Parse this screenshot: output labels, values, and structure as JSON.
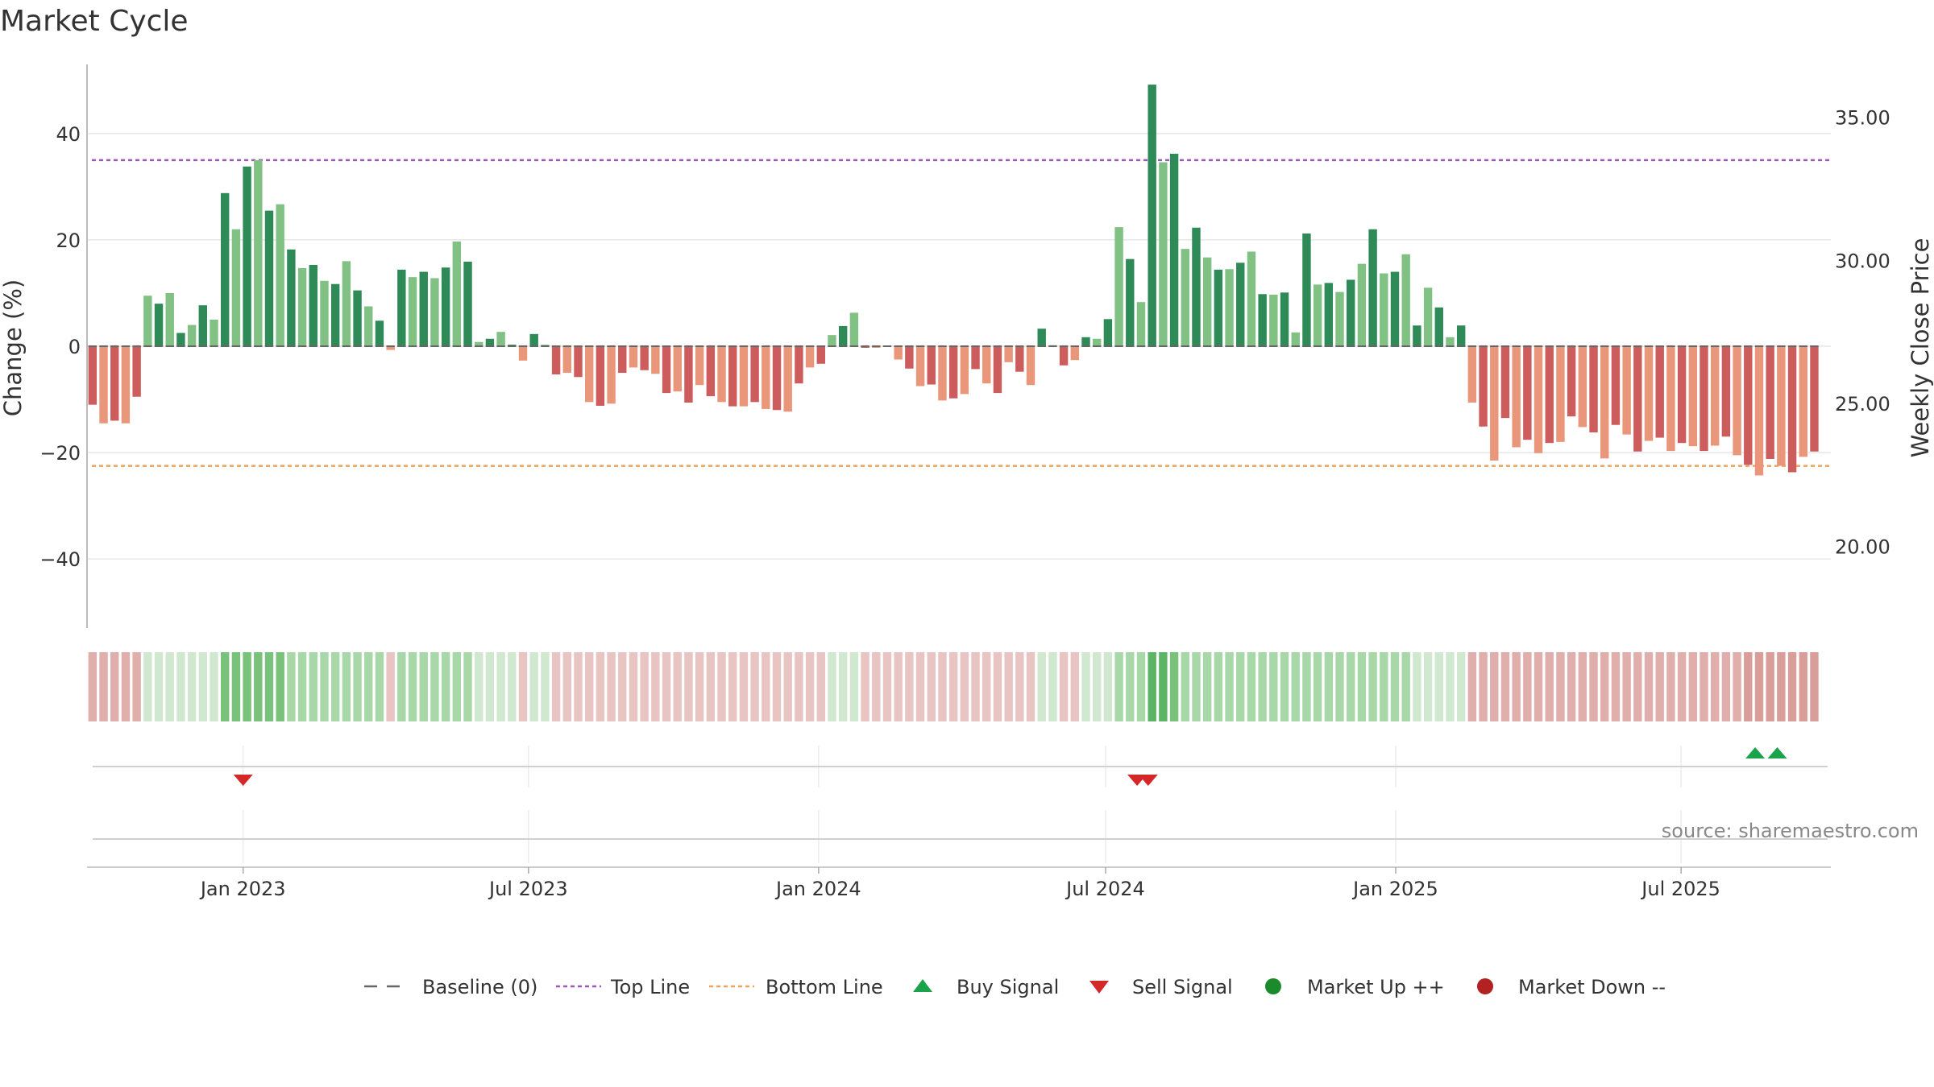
{
  "title": "Market Cycle",
  "source": "source: sharemaestro.com",
  "colors": {
    "up_strong": "#2e8b57",
    "up_light": "#82c184",
    "down_strong": "#cd5c5c",
    "down_light": "#e9967a",
    "top_line": "#9b59b6",
    "bottom_line": "#f0a35e",
    "buy": "#1aa34a",
    "sell": "#d62728",
    "market_up": "#1a8a2a",
    "market_down": "#b22222",
    "baseline": "#666666"
  },
  "legend": [
    {
      "key": "baseline",
      "label": "Baseline (0)"
    },
    {
      "key": "top",
      "label": "Top Line"
    },
    {
      "key": "bottom",
      "label": "Bottom Line"
    },
    {
      "key": "buy",
      "label": "Buy Signal"
    },
    {
      "key": "sell",
      "label": "Sell Signal"
    },
    {
      "key": "up",
      "label": "Market Up ++"
    },
    {
      "key": "down",
      "label": "Market Down --"
    }
  ],
  "chart_data": {
    "type": "bar",
    "title": "Market Cycle",
    "ylabel": "Change (%)",
    "y2label": "Weekly Close Price",
    "ylim": [
      -53,
      53
    ],
    "yticks": [
      40,
      20,
      0,
      -20,
      -40
    ],
    "ytick_labels": [
      "40",
      "20",
      "0",
      "−20",
      "−40"
    ],
    "y2lim": [
      17.15,
      36.85
    ],
    "y2ticks": [
      35,
      30,
      25,
      20
    ],
    "y2tick_labels": [
      "35.00",
      "30.00",
      "25.00",
      "20.00"
    ],
    "xlim": [
      "2022-09-24",
      "2025-10-04"
    ],
    "xticks": [
      "2023-01-01",
      "2023-07-01",
      "2024-01-01",
      "2024-07-01",
      "2025-01-01",
      "2025-07-01"
    ],
    "xtick_labels": [
      "Jan 2023",
      "Jul 2023",
      "Jan 2024",
      "Jul 2024",
      "Jan 2025",
      "Jul 2025"
    ],
    "top_line": 35,
    "bottom_line": -22.5,
    "start_date": "2022-09-24",
    "period": "weekly",
    "series": [
      {
        "values": [
          -11,
          -14.5,
          -14,
          -14.5,
          -9.5,
          9.5,
          8,
          10,
          2.5,
          4,
          7.7,
          5,
          28.8,
          22,
          33.8,
          35,
          25.5,
          26.7,
          18.2,
          14.7,
          15.3,
          12.3,
          11.7,
          16,
          10.5,
          7.5,
          4.8,
          -0.7,
          14.4,
          13,
          14,
          12.8,
          14.8,
          19.7,
          15.9,
          0.8,
          1.4,
          2.7,
          0.3,
          -2.7,
          2.3,
          0.3,
          -5.3,
          -5,
          -5.8,
          -10.5,
          -11.2,
          -10.8,
          -5,
          -4,
          -4.5,
          -5.2,
          -8.8,
          -8.5,
          -10.6,
          -7.3,
          -9.4,
          -10.5,
          -11.3,
          -11.3,
          -10.5,
          -11.8,
          -12,
          -12.3,
          -7,
          -4,
          -3.3,
          2.1,
          3.8,
          6.3,
          -0.3,
          -0.3,
          0.1,
          -2.5,
          -4.2,
          -7.5,
          -7.2,
          -10.2,
          -9.8,
          -9,
          -4.3,
          -7,
          -8.8,
          -3,
          -4.8,
          -7.3,
          3.3,
          0.2,
          -3.6,
          -2.6,
          1.7,
          1.4,
          5.1,
          22.4,
          16.4,
          8.3,
          49.2,
          34.6,
          36.2,
          18.3,
          22.3,
          16.7,
          14.4,
          14.5,
          15.7,
          17.8,
          9.8,
          9.7,
          10.1,
          2.6,
          21.2,
          11.6,
          11.9,
          10.2,
          12.5,
          15.5,
          22,
          13.7,
          14,
          17.3,
          3.9,
          11,
          7.3,
          1.7,
          3.9,
          -10.6,
          -15.1,
          -21.5,
          -13.5,
          -19,
          -17.6,
          -20.1,
          -18.2,
          -18,
          -13.2,
          -15.2,
          -16.2,
          -21.1,
          -14.8,
          -16.6,
          -19.8,
          -17.8,
          -17.2,
          -19.7,
          -18.2,
          -18.8,
          -19.7,
          -18.7,
          -17,
          -20.5,
          -22.3,
          -24.3,
          -21.2,
          -22.5,
          -23.7,
          -20.8,
          -19.8
        ]
      }
    ],
    "strength_band": {
      "levels": [
        -2,
        -2,
        -2,
        -2,
        -2,
        1,
        1,
        1,
        1,
        1,
        1,
        1,
        3,
        3,
        3,
        3,
        3,
        3,
        2,
        2,
        2,
        2,
        2,
        2,
        2,
        2,
        2,
        -1,
        2,
        2,
        2,
        2,
        2,
        2,
        2,
        1,
        1,
        1,
        1,
        -1,
        1,
        1,
        -1,
        -1,
        -1,
        -1,
        -1,
        -1,
        -1,
        -1,
        -1,
        -1,
        -1,
        -1,
        -1,
        -1,
        -1,
        -1,
        -1,
        -1,
        -1,
        -1,
        -1,
        -1,
        -1,
        -1,
        -1,
        1,
        1,
        1,
        -1,
        -1,
        -1,
        -1,
        -1,
        -1,
        -1,
        -1,
        -1,
        -1,
        -1,
        -1,
        -1,
        -1,
        -1,
        -1,
        1,
        1,
        -1,
        -1,
        1,
        1,
        1,
        2,
        2,
        2,
        4,
        4,
        3,
        2,
        2,
        2,
        2,
        2,
        2,
        2,
        2,
        2,
        2,
        2,
        2,
        2,
        2,
        2,
        2,
        2,
        2,
        2,
        2,
        2,
        1,
        1,
        1,
        1,
        1,
        -2,
        -2,
        -2,
        -2,
        -2,
        -2,
        -2,
        -2,
        -2,
        -2,
        -2,
        -2,
        -2,
        -2,
        -2,
        -2,
        -2,
        -2,
        -2,
        -2,
        -2,
        -2,
        -2,
        -2,
        -2,
        -3,
        -3,
        -3,
        -3,
        -3,
        -3,
        -3
      ]
    },
    "buy_signals": [
      "2025-08-17",
      "2025-08-31"
    ],
    "sell_signals": [
      "2023-01-01",
      "2024-07-21",
      "2024-07-28"
    ]
  }
}
